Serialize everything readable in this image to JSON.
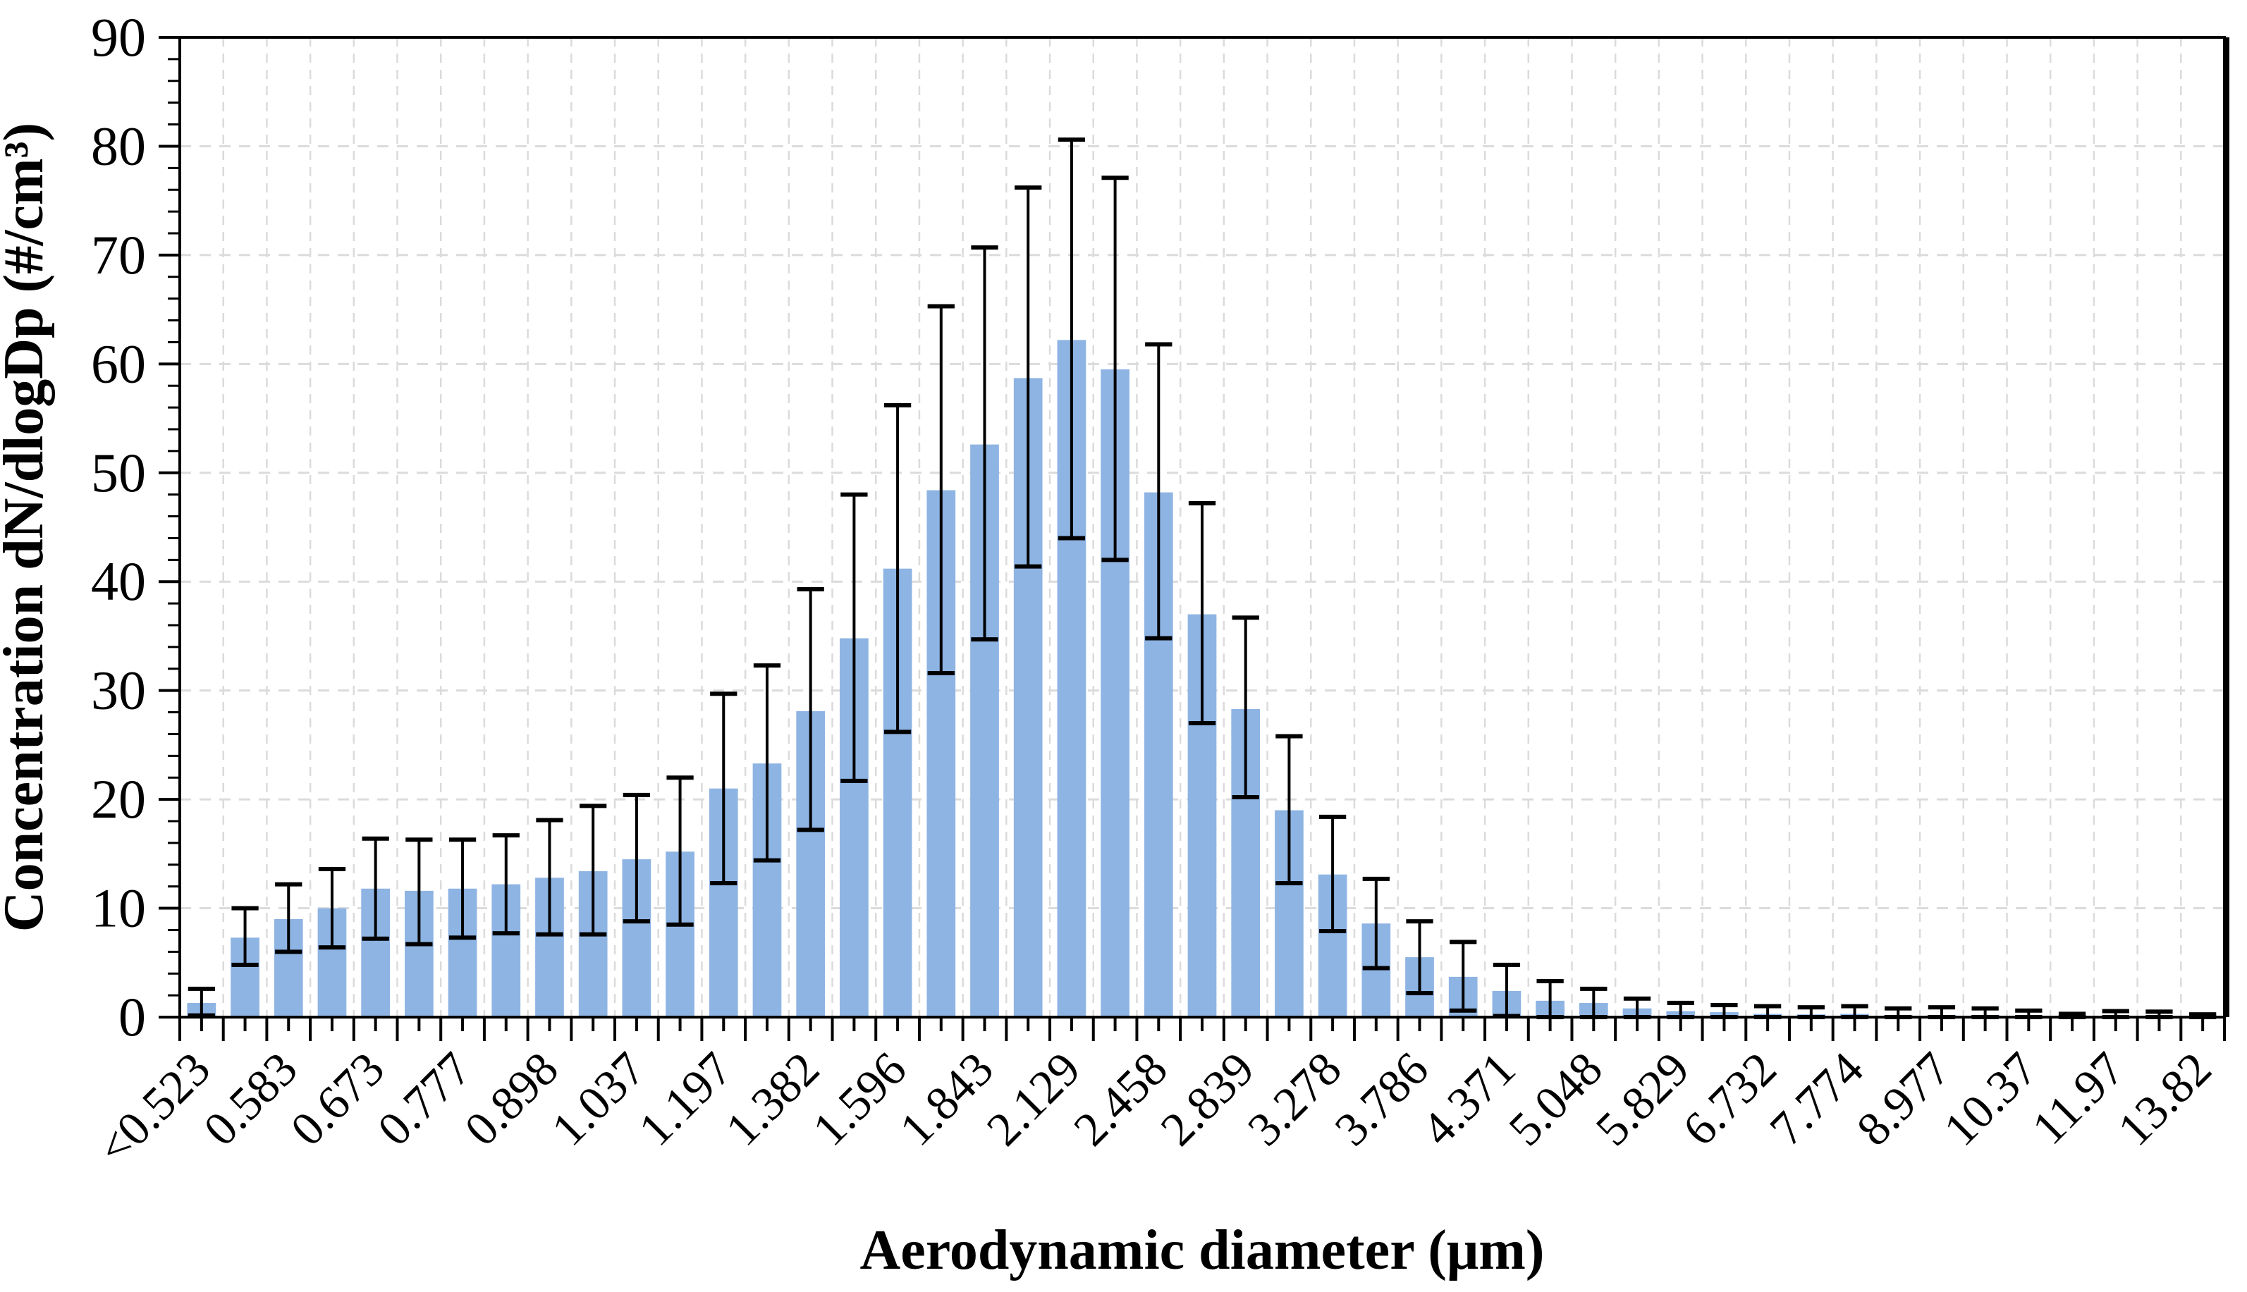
{
  "chart_data": {
    "type": "bar",
    "title": "",
    "xlabel": "Aerodynamic diameter (μm)",
    "ylabel": "Concentration dN/dlogDp (#/cm³)",
    "ylim": [
      0,
      90
    ],
    "ytick_interval": 10,
    "yminor_tick_interval": 2,
    "ytick_labels": [
      "0",
      "10",
      "20",
      "30",
      "40",
      "50",
      "60",
      "70",
      "80",
      "90"
    ],
    "legend_position": "none",
    "grid": {
      "horizontal": "dashed at every 10",
      "vertical": "dashed at every category boundary"
    },
    "colors": {
      "bar_fill": "#8EB4E3",
      "error_bar": "#000000",
      "gridline": "#DBDBDB",
      "axis": "#000000",
      "background": "#FFFFFF"
    },
    "x_tick_labels_visible": [
      "<0.523",
      "0.583",
      "0.673",
      "0.777",
      "0.898",
      "1.037",
      "1.197",
      "1.382",
      "1.596",
      "1.843",
      "2.129",
      "2.458",
      "2.839",
      "3.278",
      "3.786",
      "4.371",
      "5.048",
      "5.829",
      "6.732",
      "7.774",
      "8.977",
      "10.37",
      "11.97",
      "13.82"
    ],
    "bars": [
      {
        "label": "<0.523",
        "value": 1.3,
        "err_upper": 2.6,
        "err_lower": 0.15
      },
      {
        "label": "",
        "value": 7.3,
        "err_upper": 10.0,
        "err_lower": 4.8
      },
      {
        "label": "0.583",
        "value": 9.0,
        "err_upper": 12.2,
        "err_lower": 6.0
      },
      {
        "label": "",
        "value": 10.0,
        "err_upper": 13.6,
        "err_lower": 6.4
      },
      {
        "label": "0.673",
        "value": 11.8,
        "err_upper": 16.4,
        "err_lower": 7.2
      },
      {
        "label": "",
        "value": 11.6,
        "err_upper": 16.3,
        "err_lower": 6.7
      },
      {
        "label": "0.777",
        "value": 11.8,
        "err_upper": 16.3,
        "err_lower": 7.3
      },
      {
        "label": "",
        "value": 12.2,
        "err_upper": 16.7,
        "err_lower": 7.7
      },
      {
        "label": "0.898",
        "value": 12.8,
        "err_upper": 18.1,
        "err_lower": 7.6
      },
      {
        "label": "",
        "value": 13.4,
        "err_upper": 19.4,
        "err_lower": 7.6
      },
      {
        "label": "1.037",
        "value": 14.5,
        "err_upper": 20.4,
        "err_lower": 8.8
      },
      {
        "label": "",
        "value": 15.2,
        "err_upper": 22.0,
        "err_lower": 8.5
      },
      {
        "label": "1.197",
        "value": 21.0,
        "err_upper": 29.7,
        "err_lower": 12.3
      },
      {
        "label": "",
        "value": 23.3,
        "err_upper": 32.3,
        "err_lower": 14.4
      },
      {
        "label": "1.382",
        "value": 28.1,
        "err_upper": 39.3,
        "err_lower": 17.2
      },
      {
        "label": "",
        "value": 34.8,
        "err_upper": 48.0,
        "err_lower": 21.7
      },
      {
        "label": "1.596",
        "value": 41.2,
        "err_upper": 56.2,
        "err_lower": 26.2
      },
      {
        "label": "",
        "value": 48.4,
        "err_upper": 65.3,
        "err_lower": 31.6
      },
      {
        "label": "1.843",
        "value": 52.6,
        "err_upper": 70.7,
        "err_lower": 34.7
      },
      {
        "label": "",
        "value": 58.7,
        "err_upper": 76.2,
        "err_lower": 41.4
      },
      {
        "label": "2.129",
        "value": 62.2,
        "err_upper": 80.6,
        "err_lower": 44.0
      },
      {
        "label": "",
        "value": 59.5,
        "err_upper": 77.1,
        "err_lower": 42.0
      },
      {
        "label": "2.458",
        "value": 48.2,
        "err_upper": 61.8,
        "err_lower": 34.8
      },
      {
        "label": "",
        "value": 37.0,
        "err_upper": 47.2,
        "err_lower": 27.0
      },
      {
        "label": "2.839",
        "value": 28.3,
        "err_upper": 36.7,
        "err_lower": 20.2
      },
      {
        "label": "",
        "value": 19.0,
        "err_upper": 25.8,
        "err_lower": 12.3
      },
      {
        "label": "3.278",
        "value": 13.1,
        "err_upper": 18.4,
        "err_lower": 7.9
      },
      {
        "label": "",
        "value": 8.6,
        "err_upper": 12.7,
        "err_lower": 4.5
      },
      {
        "label": "3.786",
        "value": 5.5,
        "err_upper": 8.8,
        "err_lower": 2.2
      },
      {
        "label": "",
        "value": 3.7,
        "err_upper": 6.9,
        "err_lower": 0.6
      },
      {
        "label": "4.371",
        "value": 2.4,
        "err_upper": 4.8,
        "err_lower": 0.1
      },
      {
        "label": "",
        "value": 1.5,
        "err_upper": 3.3,
        "err_lower": 0.0
      },
      {
        "label": "5.048",
        "value": 1.3,
        "err_upper": 2.6,
        "err_lower": 0.0
      },
      {
        "label": "",
        "value": 0.8,
        "err_upper": 1.7,
        "err_lower": 0.0
      },
      {
        "label": "5.829",
        "value": 0.55,
        "err_upper": 1.3,
        "err_lower": 0.0
      },
      {
        "label": "",
        "value": 0.45,
        "err_upper": 1.1,
        "err_lower": 0.0
      },
      {
        "label": "6.732",
        "value": 0.3,
        "err_upper": 1.0,
        "err_lower": 0.0
      },
      {
        "label": "",
        "value": 0.25,
        "err_upper": 0.9,
        "err_lower": 0.0
      },
      {
        "label": "7.774",
        "value": 0.3,
        "err_upper": 1.0,
        "err_lower": 0.0
      },
      {
        "label": "",
        "value": 0.2,
        "err_upper": 0.8,
        "err_lower": 0.0
      },
      {
        "label": "8.977",
        "value": 0.2,
        "err_upper": 0.9,
        "err_lower": 0.0
      },
      {
        "label": "",
        "value": 0.2,
        "err_upper": 0.8,
        "err_lower": 0.0
      },
      {
        "label": "10.37",
        "value": 0.1,
        "err_upper": 0.6,
        "err_lower": 0.0
      },
      {
        "label": "",
        "value": 0.15,
        "err_upper": 0.3,
        "err_lower": 0.0
      },
      {
        "label": "11.97",
        "value": 0.1,
        "err_upper": 0.55,
        "err_lower": 0.0
      },
      {
        "label": "",
        "value": 0.1,
        "err_upper": 0.5,
        "err_lower": 0.0
      },
      {
        "label": "13.82",
        "value": 0.1,
        "err_upper": 0.25,
        "err_lower": 0.0
      }
    ]
  }
}
